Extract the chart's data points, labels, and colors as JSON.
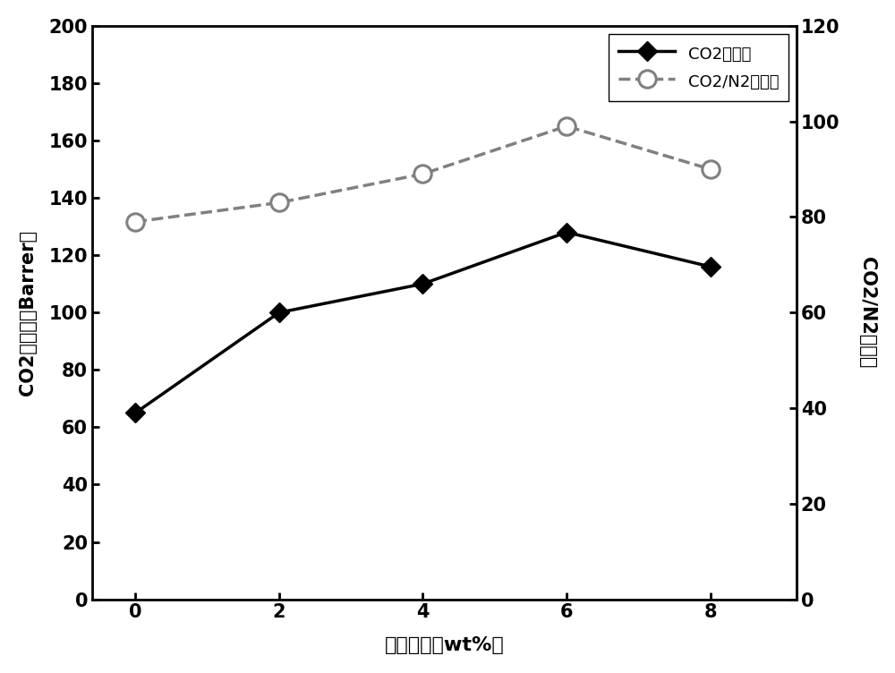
{
  "x": [
    0,
    2,
    4,
    6,
    8
  ],
  "co2_permeability": [
    65,
    100,
    110,
    128,
    116
  ],
  "co2_n2_selectivity": [
    79,
    83,
    89,
    99,
    90
  ],
  "left_ylim": [
    0,
    200
  ],
  "right_ylim": [
    0,
    120
  ],
  "left_yticks": [
    0,
    20,
    40,
    60,
    80,
    100,
    120,
    140,
    160,
    180,
    200
  ],
  "right_yticks": [
    0,
    20,
    40,
    60,
    80,
    100,
    120
  ],
  "xticks": [
    0,
    2,
    4,
    6,
    8
  ],
  "xlabel": "填料含量（wt%）",
  "ylabel_left": "CO2渗透率（Barrer）",
  "ylabel_right": "CO2/N2选择性",
  "legend_line1": "CO2渗透率",
  "legend_line2": "CO2/N2选择性",
  "line1_color": "#000000",
  "line2_color": "#808080",
  "bg_color": "#ffffff",
  "line_width": 2.5,
  "marker_size": 11
}
